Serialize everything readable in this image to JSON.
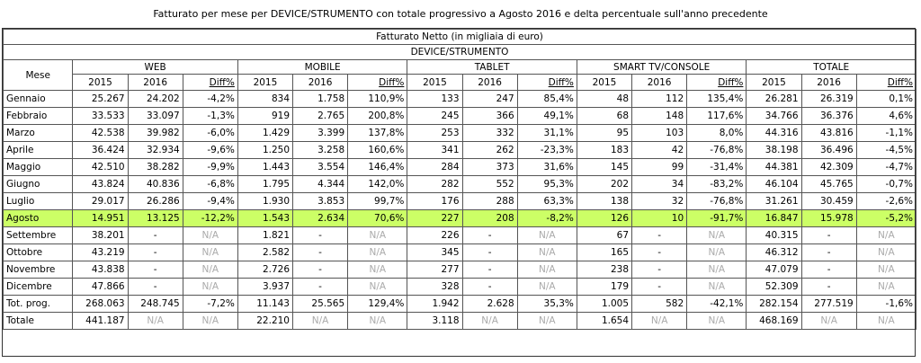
{
  "caption": "Fatturato per mese per DEVICE/STRUMENTO con totale progressivo a Agosto 2016 e delta percentuale sull'anno precedente",
  "header1": "Fatturato Netto (in migliaia di euro)",
  "header2": "DEVICE/STRUMENTO",
  "mese_label": "Mese",
  "groups": [
    "WEB",
    "MOBILE",
    "TABLET",
    "SMART TV/CONSOLE",
    "TOTALE"
  ],
  "sub": [
    "2015",
    "2016",
    "Diff%"
  ],
  "rows": [
    {
      "month": "Gennaio",
      "v": [
        "25.267",
        "24.202",
        "-4,2%",
        "834",
        "1.758",
        "110,9%",
        "133",
        "247",
        "85,4%",
        "48",
        "112",
        "135,4%",
        "26.281",
        "26.319",
        "0,1%"
      ]
    },
    {
      "month": "Febbraio",
      "v": [
        "33.533",
        "33.097",
        "-1,3%",
        "919",
        "2.765",
        "200,8%",
        "245",
        "366",
        "49,1%",
        "68",
        "148",
        "117,6%",
        "34.766",
        "36.376",
        "4,6%"
      ]
    },
    {
      "month": "Marzo",
      "v": [
        "42.538",
        "39.982",
        "-6,0%",
        "1.429",
        "3.399",
        "137,8%",
        "253",
        "332",
        "31,1%",
        "95",
        "103",
        "8,0%",
        "44.316",
        "43.816",
        "-1,1%"
      ]
    },
    {
      "month": "Aprile",
      "v": [
        "36.424",
        "32.934",
        "-9,6%",
        "1.250",
        "3.258",
        "160,6%",
        "341",
        "262",
        "-23,3%",
        "183",
        "42",
        "-76,8%",
        "38.198",
        "36.496",
        "-4,5%"
      ]
    },
    {
      "month": "Maggio",
      "v": [
        "42.510",
        "38.282",
        "-9,9%",
        "1.443",
        "3.554",
        "146,4%",
        "284",
        "373",
        "31,6%",
        "145",
        "99",
        "-31,4%",
        "44.381",
        "42.309",
        "-4,7%"
      ]
    },
    {
      "month": "Giugno",
      "v": [
        "43.824",
        "40.836",
        "-6,8%",
        "1.795",
        "4.344",
        "142,0%",
        "282",
        "552",
        "95,3%",
        "202",
        "34",
        "-83,2%",
        "46.104",
        "45.765",
        "-0,7%"
      ]
    },
    {
      "month": "Luglio",
      "v": [
        "29.017",
        "26.286",
        "-9,4%",
        "1.930",
        "3.853",
        "99,7%",
        "176",
        "288",
        "63,3%",
        "138",
        "32",
        "-76,8%",
        "31.261",
        "30.459",
        "-2,6%"
      ]
    },
    {
      "month": "Agosto",
      "highlight": true,
      "v": [
        "14.951",
        "13.125",
        "-12,2%",
        "1.543",
        "2.634",
        "70,6%",
        "227",
        "208",
        "-8,2%",
        "126",
        "10",
        "-91,7%",
        "16.847",
        "15.978",
        "-5,2%"
      ]
    },
    {
      "month": "Settembre",
      "v": [
        "38.201",
        "-",
        "N/A",
        "1.821",
        "-",
        "N/A",
        "226",
        "-",
        "N/A",
        "67",
        "-",
        "N/A",
        "40.315",
        "-",
        "N/A"
      ]
    },
    {
      "month": "Ottobre",
      "v": [
        "43.219",
        "-",
        "N/A",
        "2.582",
        "-",
        "N/A",
        "345",
        "-",
        "N/A",
        "165",
        "-",
        "N/A",
        "46.312",
        "-",
        "N/A"
      ]
    },
    {
      "month": "Novembre",
      "v": [
        "43.838",
        "-",
        "N/A",
        "2.726",
        "-",
        "N/A",
        "277",
        "-",
        "N/A",
        "238",
        "-",
        "N/A",
        "47.079",
        "-",
        "N/A"
      ]
    },
    {
      "month": "Dicembre",
      "v": [
        "47.866",
        "-",
        "N/A",
        "3.937",
        "-",
        "N/A",
        "328",
        "-",
        "N/A",
        "179",
        "-",
        "N/A",
        "52.309",
        "-",
        "N/A"
      ]
    }
  ],
  "totals": [
    {
      "month": "Tot. prog.",
      "v": [
        "268.063",
        "248.745",
        "-7,2%",
        "11.143",
        "25.565",
        "129,4%",
        "1.942",
        "2.628",
        "35,3%",
        "1.005",
        "582",
        "-42,1%",
        "282.154",
        "277.519",
        "-1,6%"
      ]
    },
    {
      "month": "Totale",
      "v": [
        "441.187",
        "N/A",
        "N/A",
        "22.210",
        "N/A",
        "N/A",
        "3.118",
        "N/A",
        "N/A",
        "1.654",
        "N/A",
        "N/A",
        "468.169",
        "N/A",
        "N/A"
      ]
    }
  ]
}
